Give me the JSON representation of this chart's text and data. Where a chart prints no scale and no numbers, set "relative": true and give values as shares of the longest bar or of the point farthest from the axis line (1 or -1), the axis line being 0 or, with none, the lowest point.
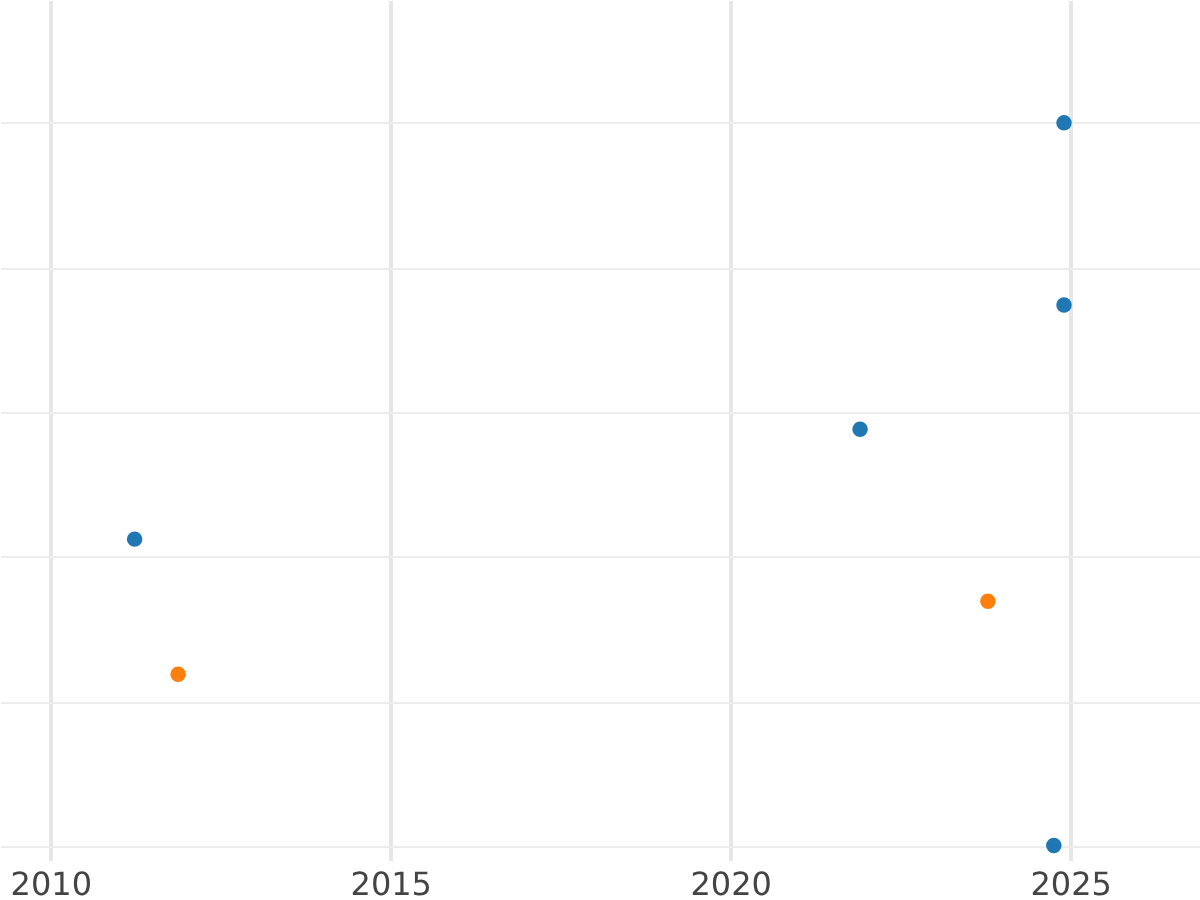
{
  "chart_data": {
    "type": "scatter",
    "relative": true,
    "xlim": [
      2009.26,
      2026.91
    ],
    "xticks": [
      2010,
      2015,
      2020,
      2025
    ],
    "grid": true,
    "marker": "circle",
    "series": [
      {
        "color": "#1f77b4",
        "x": [
          2011.24,
          2021.91,
          2024.91,
          2024.91,
          2024.76
        ],
        "values": [
          0.424,
          0.576,
          0.748,
          1,
          0
        ]
      },
      {
        "color": "#ff7f0e",
        "x": [
          2011.88,
          2023.79
        ],
        "values": [
          0.237,
          0.338
        ]
      }
    ]
  }
}
